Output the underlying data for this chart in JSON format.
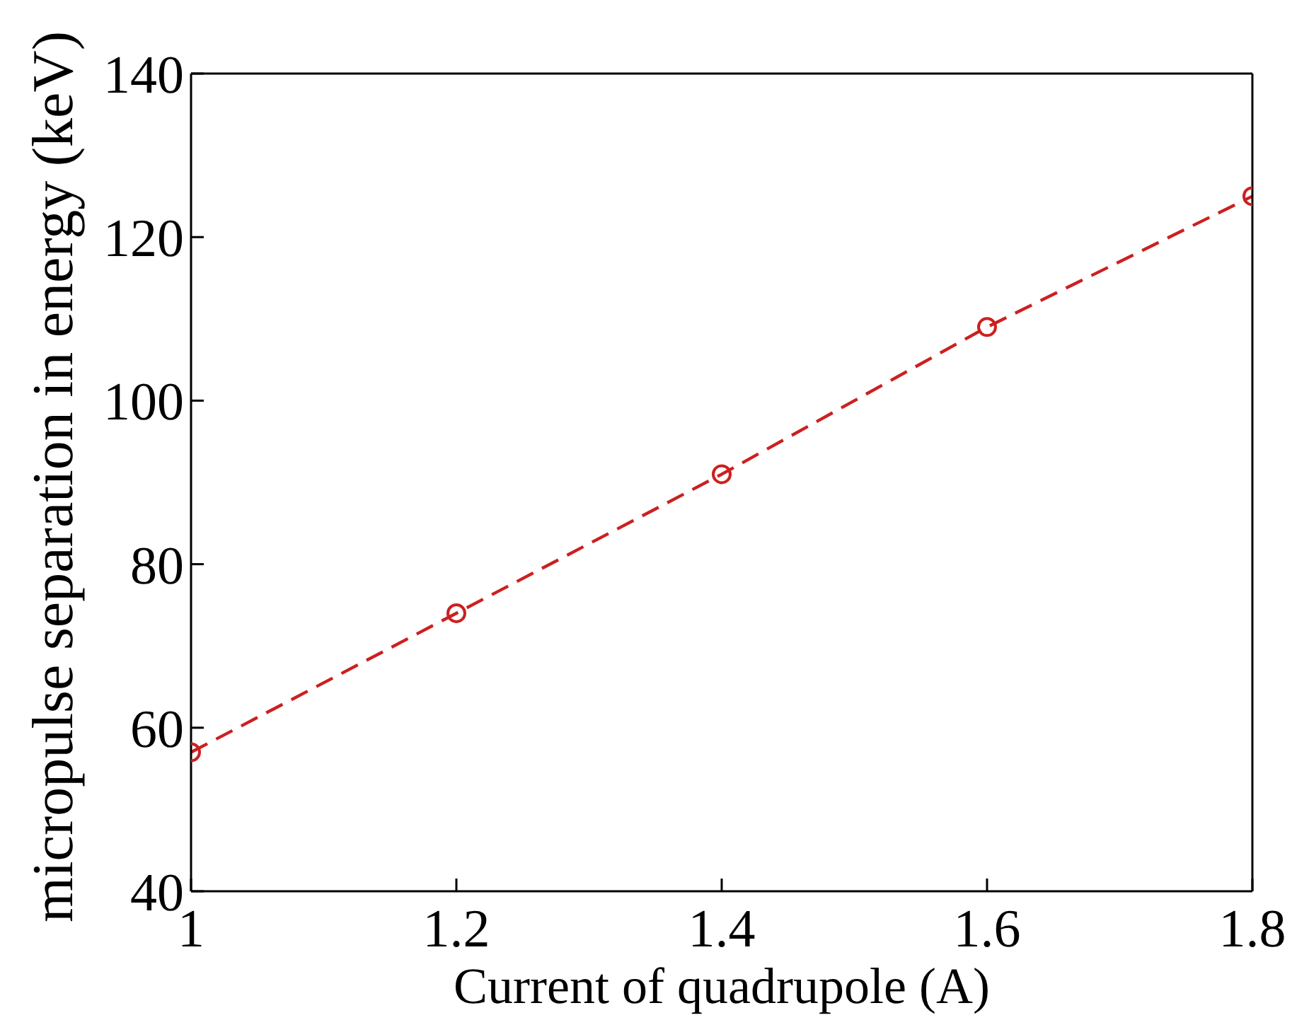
{
  "chart_data": {
    "type": "line",
    "xlabel": "Current of quadrupole (A)",
    "ylabel": "micropulse separation in energy (keV)",
    "x": [
      1,
      1.2,
      1.4,
      1.6,
      1.8
    ],
    "series": [
      {
        "color": "#cc2020",
        "values": [
          57,
          74,
          91,
          109,
          125
        ]
      }
    ],
    "xlim": [
      1,
      1.8
    ],
    "xticks": [
      1,
      1.2,
      1.4,
      1.6,
      1.8
    ],
    "ylim": [
      40,
      140
    ],
    "yticks": [
      40,
      60,
      80,
      100,
      120,
      140
    ],
    "marker": "circle",
    "line_style": "dashed"
  }
}
